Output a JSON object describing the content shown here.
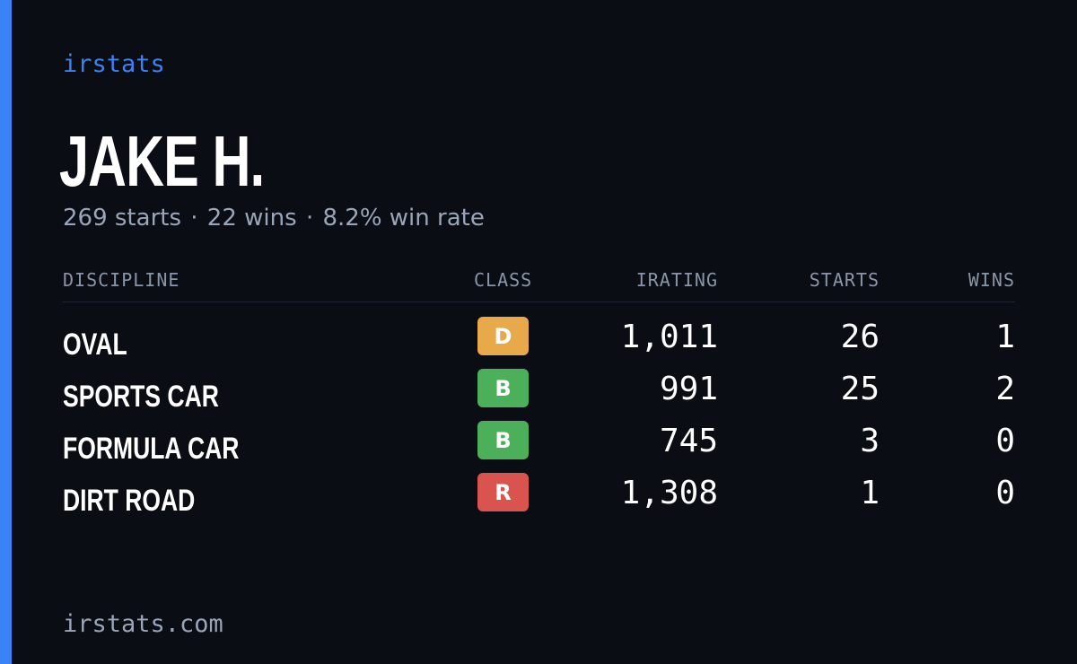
{
  "brand": "irstats",
  "driver": {
    "name": "JAKE H."
  },
  "summary": {
    "starts": "269 starts",
    "wins": "22 wins",
    "win_rate": "8.2% win rate",
    "separator": "·"
  },
  "table": {
    "headers": {
      "discipline": "DISCIPLINE",
      "class": "CLASS",
      "irating": "IRATING",
      "starts": "STARTS",
      "wins": "WINS"
    },
    "rows": [
      {
        "discipline": "OVAL",
        "class": "D",
        "class_color": "#e8a94a",
        "irating": "1,011",
        "starts": "26",
        "wins": "1"
      },
      {
        "discipline": "SPORTS CAR",
        "class": "B",
        "class_color": "#4caf5a",
        "irating": "991",
        "starts": "25",
        "wins": "2"
      },
      {
        "discipline": "FORMULA CAR",
        "class": "B",
        "class_color": "#4caf5a",
        "irating": "745",
        "starts": "3",
        "wins": "0"
      },
      {
        "discipline": "DIRT ROAD",
        "class": "R",
        "class_color": "#d9534f",
        "irating": "1,308",
        "starts": "1",
        "wins": "0"
      }
    ]
  },
  "footer": "irstats.com",
  "colors": {
    "accent": "#3b82f6",
    "background": "#0a0d14",
    "muted_text": "#9aa5b8"
  }
}
